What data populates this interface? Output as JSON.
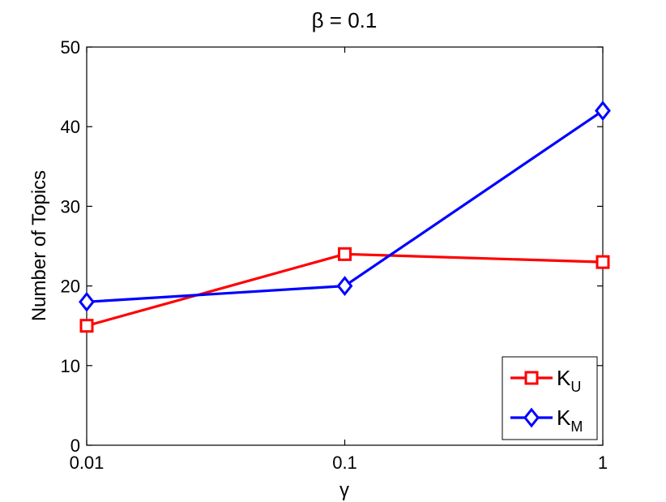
{
  "chart_data": {
    "type": "line",
    "title": "β = 0.1",
    "xlabel": "γ",
    "ylabel": "Number of Topics",
    "x_scale": "log",
    "x": [
      0.01,
      0.1,
      1
    ],
    "xlim": [
      0.01,
      1
    ],
    "ylim": [
      0,
      50
    ],
    "x_ticks": [
      "0.01",
      "0.1",
      "1"
    ],
    "y_ticks": [
      "0",
      "10",
      "20",
      "30",
      "40",
      "50"
    ],
    "grid": false,
    "legend_position": "bottom-right",
    "series": [
      {
        "name": "K_U",
        "name_main": "K",
        "name_sub": "U",
        "values": [
          15,
          24,
          23
        ],
        "color": "#ff0000",
        "marker": "square"
      },
      {
        "name": "K_M",
        "name_main": "K",
        "name_sub": "M",
        "values": [
          18,
          20,
          42
        ],
        "color": "#0000ff",
        "marker": "diamond"
      }
    ]
  }
}
